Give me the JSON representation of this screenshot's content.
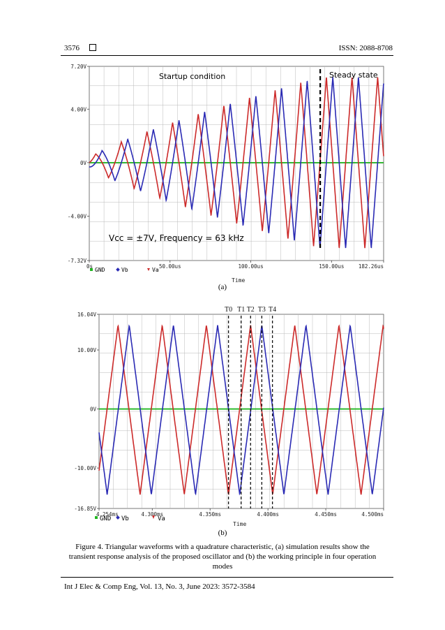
{
  "header": {
    "page_number": "3576",
    "issn": "ISSN: 2088-8708"
  },
  "footer": {
    "citation": "Int J Elec & Comp Eng, Vol. 13, No. 3, June 2023: 3572-3584"
  },
  "colors": {
    "va": "#cc2a2a",
    "vb": "#2a2ab4",
    "gnd": "#22b622",
    "grid": "#b9b9b9",
    "axis": "#555555"
  },
  "figure": {
    "sublabel_a": "(a)",
    "sublabel_b": "(b)",
    "caption": "Figure 4. Triangular waveforms with a quadrature characteristic, (a) simulation results show the transient response analysis of the proposed oscillator and (b) the working principle in four operation modes"
  },
  "chart_data": [
    {
      "type": "line",
      "panel": "a",
      "xlabel": "Time",
      "y_ticks": [
        "7.20V",
        "4.00V",
        "0V",
        "-4.00V",
        "-7.32V"
      ],
      "x_ticks": [
        "0s",
        "50.00us",
        "100.00us",
        "150.00us",
        "182.26us"
      ],
      "ylim": [
        -7.32,
        7.2
      ],
      "xlim_us": [
        0,
        182.26
      ],
      "legend": [
        {
          "name": "GND",
          "marker": "square",
          "color": "#22b622"
        },
        {
          "name": "Vb",
          "marker": "diamond",
          "color": "#2a2ab4"
        },
        {
          "name": "Va",
          "marker": "triangle",
          "color": "#cc2a2a"
        }
      ],
      "annotations": {
        "startup": "Startup condition",
        "steady": "Steady state",
        "params": "Vcc = ±7V, Frequency = 63 kHz"
      },
      "steady_state_marker_us": 143,
      "frequency_khz": 63,
      "amplitude_start_v": 0.3,
      "amplitude_steady_v": 6.4,
      "series": [
        {
          "name": "Va",
          "waveform": "triangle",
          "phase_deg": 0
        },
        {
          "name": "Vb",
          "waveform": "triangle",
          "phase_deg": 90
        },
        {
          "name": "GND",
          "waveform": "constant",
          "value": 0
        }
      ]
    },
    {
      "type": "line",
      "panel": "b",
      "xlabel": "Time",
      "y_ticks": [
        "16.04V",
        "10.00V",
        "0V",
        "-10.00V",
        "-16.85V"
      ],
      "x_ticks": [
        "4.254ms",
        "4.300ms",
        "4.350ms",
        "4.400ms",
        "4.450ms",
        "4.500ms"
      ],
      "ylim": [
        -16.85,
        16.04
      ],
      "xlim_ms": [
        4.254,
        4.5
      ],
      "legend": [
        {
          "name": "GND",
          "marker": "square",
          "color": "#22b622"
        },
        {
          "name": "Vb",
          "marker": "diamond",
          "color": "#2a2ab4"
        },
        {
          "name": "Va",
          "marker": "triangle",
          "color": "#cc2a2a"
        }
      ],
      "time_markers": [
        {
          "label": "T0",
          "t_ms": 4.3659
        },
        {
          "label": "T1",
          "t_ms": 4.3768
        },
        {
          "label": "T2",
          "t_ms": 4.385
        },
        {
          "label": "T3",
          "t_ms": 4.3947
        },
        {
          "label": "T4",
          "t_ms": 4.4039
        }
      ],
      "peak_high_v": 14.2,
      "peak_low_v": -14.5,
      "period_ms": 0.0382,
      "series": [
        {
          "name": "Va",
          "waveform": "triangle",
          "phase_deg": 0,
          "peak_at_ms": 4.385
        },
        {
          "name": "Vb",
          "waveform": "triangle",
          "phase_deg": 90,
          "peak_at_ms": 4.3947
        },
        {
          "name": "GND",
          "waveform": "constant",
          "value": 0
        }
      ]
    }
  ]
}
